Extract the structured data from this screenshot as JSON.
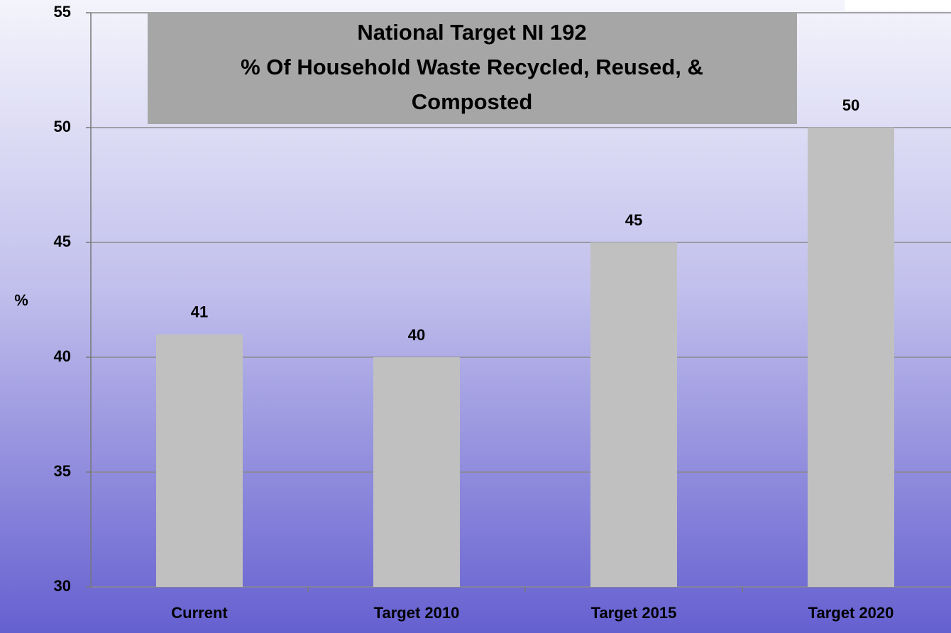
{
  "chart_data": {
    "type": "bar",
    "title": [
      "National Target NI 192",
      "% Of Household Waste Recycled, Reused, &",
      "Composted"
    ],
    "y_label": "%",
    "categories": [
      "Current",
      "Target 2010",
      "Target 2015",
      "Target 2020"
    ],
    "values": [
      41,
      40,
      45,
      50
    ],
    "color": "#c0c0c0",
    "ylim": [
      30,
      55
    ],
    "yticks": [
      30,
      35,
      40,
      45,
      50,
      55
    ],
    "grid": true
  }
}
